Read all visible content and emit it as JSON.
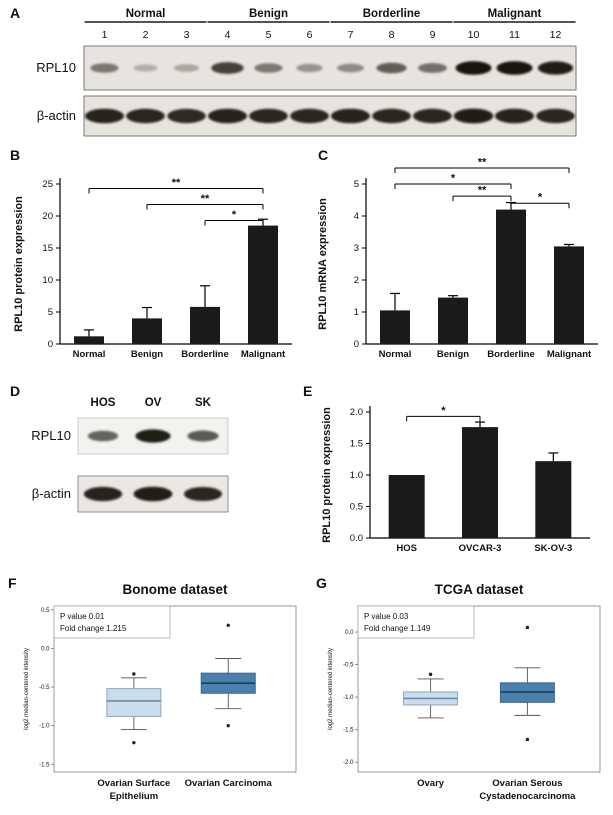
{
  "panel_labels": {
    "A": "A",
    "B": "B",
    "C": "C",
    "D": "D",
    "E": "E",
    "F": "F",
    "G": "G"
  },
  "blot_a": {
    "groups": [
      {
        "name": "Normal",
        "lanes": [
          "1",
          "2",
          "3"
        ]
      },
      {
        "name": "Benign",
        "lanes": [
          "4",
          "5",
          "6"
        ]
      },
      {
        "name": "Borderline",
        "lanes": [
          "7",
          "8",
          "9"
        ]
      },
      {
        "name": "Malignant",
        "lanes": [
          "10",
          "11",
          "12"
        ]
      }
    ],
    "rows": [
      {
        "label": "RPL10",
        "band_scale": 1,
        "intensities": [
          0.45,
          0.15,
          0.2,
          0.75,
          0.45,
          0.3,
          0.35,
          0.6,
          0.5,
          1.0,
          1.0,
          0.95
        ]
      },
      {
        "label": "β-actin",
        "band_scale": 1.12,
        "intensities": [
          0.92,
          0.9,
          0.88,
          0.92,
          0.9,
          0.9,
          0.92,
          0.9,
          0.9,
          0.95,
          0.92,
          0.9
        ]
      }
    ]
  },
  "blot_d": {
    "lanes": [
      "HOS",
      "OV",
      "SK"
    ],
    "rows": [
      {
        "label": "RPL10",
        "band_scale": 1,
        "intensities": [
          0.6,
          0.95,
          0.65
        ]
      },
      {
        "label": "β-actin",
        "band_scale": 1.1,
        "intensities": [
          0.92,
          0.95,
          0.9
        ]
      }
    ]
  },
  "chart_data": [
    {
      "id": "B",
      "type": "bar",
      "ylabel": "RPL10 protein expression",
      "ylim": [
        0,
        25
      ],
      "yticks": [
        0,
        5,
        10,
        15,
        20,
        25
      ],
      "ytick_labels": [
        "0",
        "5",
        "10",
        "15",
        "20",
        "25"
      ],
      "bar_color": "#1c1a19",
      "categories": [
        "Normal",
        "Benign",
        "Borderline",
        "Malignant"
      ],
      "values": [
        1.2,
        4.0,
        5.8,
        18.5
      ],
      "errors": [
        1.0,
        1.7,
        3.3,
        1.0
      ],
      "significance": [
        {
          "from": 0,
          "to": 3,
          "label": "**",
          "y": 24.3
        },
        {
          "from": 1,
          "to": 3,
          "label": "**",
          "y": 21.8
        },
        {
          "from": 2,
          "to": 3,
          "label": "*",
          "y": 19.3
        }
      ]
    },
    {
      "id": "C",
      "type": "bar",
      "ylabel": "RPL10 mRNA expression",
      "ylim": [
        0,
        5
      ],
      "yticks": [
        0,
        1,
        2,
        3,
        4,
        5
      ],
      "ytick_labels": [
        "0",
        "1",
        "2",
        "3",
        "4",
        "5"
      ],
      "bar_color": "#1c1a19",
      "categories": [
        "Normal",
        "Benign",
        "Borderline",
        "Malignant"
      ],
      "values": [
        1.05,
        1.45,
        4.2,
        3.05
      ],
      "errors": [
        0.53,
        0.06,
        0.22,
        0.06
      ],
      "significance": [
        {
          "from": 0,
          "to": 3,
          "label": "**",
          "y": 5.5
        },
        {
          "from": 0,
          "to": 2,
          "label": "*",
          "y": 5.0
        },
        {
          "from": 1,
          "to": 2,
          "label": "**",
          "y": 4.62
        },
        {
          "from": 2,
          "to": 3,
          "label": "*",
          "y": 4.4
        }
      ]
    },
    {
      "id": "E",
      "type": "bar",
      "ylabel": "RPL10 protein expression",
      "ylim": [
        0,
        2
      ],
      "yticks": [
        0,
        0.5,
        1,
        1.5,
        2
      ],
      "ytick_labels": [
        "0.0",
        "0.5",
        "1.0",
        "1.5",
        "2.0"
      ],
      "bar_color": "#1c1a19",
      "categories": [
        "HOS",
        "OVCAR-3",
        "SK-OV-3"
      ],
      "values": [
        1.0,
        1.76,
        1.22
      ],
      "errors": [
        0,
        0.08,
        0.13
      ],
      "significance": [
        {
          "from": 0,
          "to": 1,
          "label": "*",
          "y": 1.93
        }
      ]
    },
    {
      "id": "F",
      "type": "box",
      "title": "Bonome dataset",
      "annotation": [
        "P value 0.01",
        "Fold change 1.215"
      ],
      "ylabel": "log2 median-centered intensity",
      "ylim": [
        -1.6,
        0.55
      ],
      "yticks": [
        0.5,
        0,
        -0.5,
        -1,
        -1.5
      ],
      "ytick_labels": [
        "0.5",
        "0.0",
        "-0.5",
        "-1.0",
        "-1.5"
      ],
      "categories": [
        [
          "Ovarian Surface",
          "Epithelium"
        ],
        [
          "Ovarian Carcinoma"
        ]
      ],
      "boxes": [
        {
          "low": -1.05,
          "q1": -0.88,
          "median": -0.68,
          "q3": -0.52,
          "high": -0.38,
          "outliers": [
            -0.33,
            -1.22
          ],
          "fill": "#ccdded",
          "stroke": "#8fa6ba",
          "median_color": "#6b8dad"
        },
        {
          "low": -0.78,
          "q1": -0.58,
          "median": -0.45,
          "q3": -0.32,
          "high": -0.13,
          "outliers": [
            0.3,
            -1.0
          ],
          "fill": "#4a80ab",
          "stroke": "#3a678c",
          "median_color": "#16405e"
        }
      ]
    },
    {
      "id": "G",
      "type": "box",
      "title": "TCGA dataset",
      "annotation": [
        "P value 0.03",
        "Fold change 1.149"
      ],
      "ylabel": "log2 median-centered intensity",
      "ylim": [
        -2.15,
        0.4
      ],
      "yticks": [
        0,
        -0.5,
        -1,
        -1.5,
        -2
      ],
      "ytick_labels": [
        "0.0",
        "-0.5",
        "-1.0",
        "-1.5",
        "-2.0"
      ],
      "categories": [
        [
          "Ovary"
        ],
        [
          "Ovarian Serous",
          "Cystadenocarcinoma"
        ]
      ],
      "boxes": [
        {
          "low": -1.32,
          "q1": -1.12,
          "median": -1.02,
          "q3": -0.92,
          "high": -0.72,
          "outliers": [
            -0.65
          ],
          "fill": "#ccdded",
          "stroke": "#8fa6ba",
          "median_color": "#6b8dad"
        },
        {
          "low": -1.28,
          "q1": -1.08,
          "median": -0.92,
          "q3": -0.78,
          "high": -0.55,
          "outliers": [
            0.07,
            -1.65
          ],
          "fill": "#4a80ab",
          "stroke": "#3a678c",
          "median_color": "#16405e"
        }
      ]
    }
  ]
}
